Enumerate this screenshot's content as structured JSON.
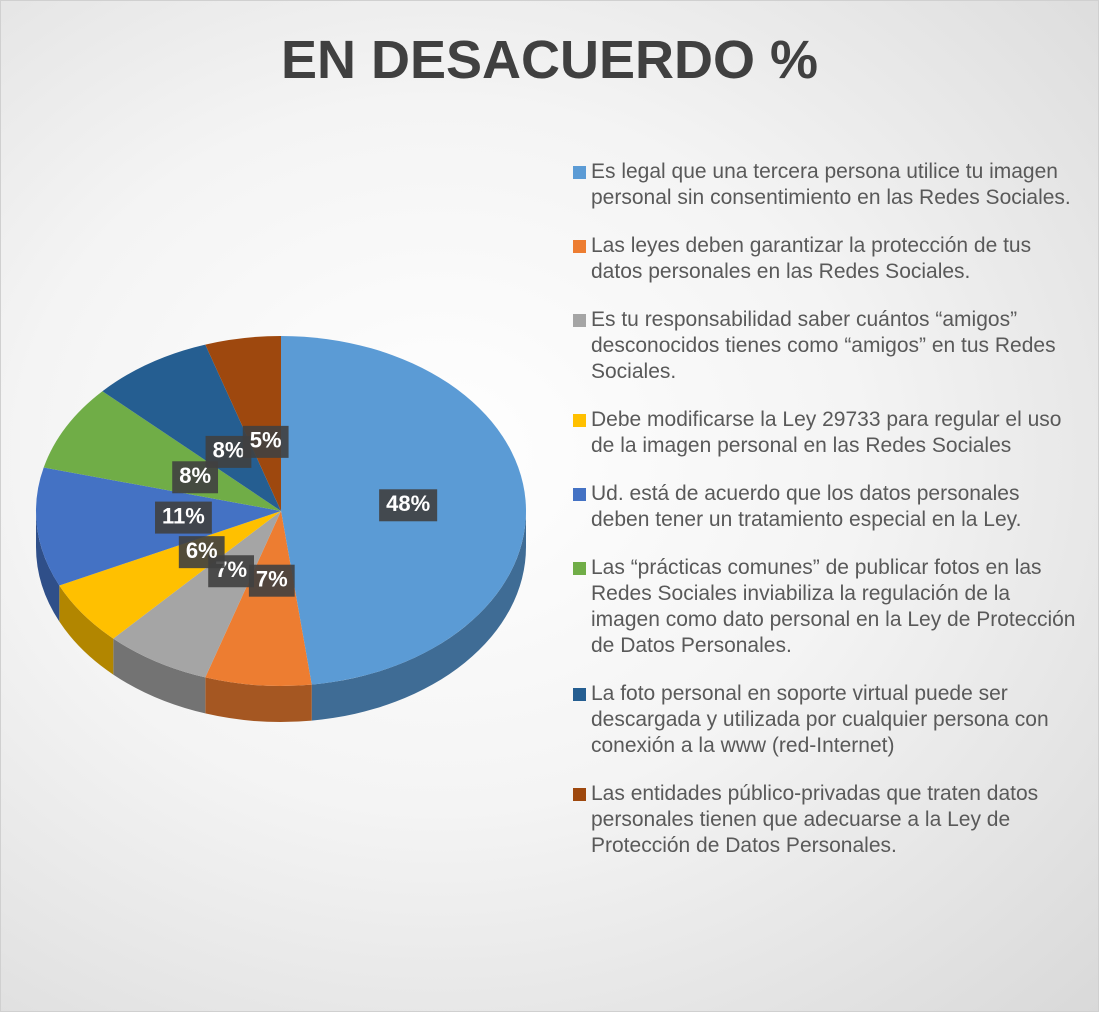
{
  "chart_data": {
    "type": "pie3d",
    "title": "EN DESACUERDO %",
    "categories": [
      "Es legal que una tercera persona utilice tu imagen personal sin consentimiento en las Redes Sociales.",
      "Las leyes deben garantizar la protección de tus datos personales en las Redes Sociales.",
      "Es tu responsabilidad saber cuántos “amigos” desconocidos tienes como “amigos” en tus Redes Sociales.",
      "Debe modificarse la Ley 29733 para regular el uso de la imagen personal en las Redes Sociales",
      "Ud. está de acuerdo que los datos personales deben tener un tratamiento especial en la Ley.",
      "Las “prácticas comunes” de publicar fotos en las Redes Sociales inviabiliza la regulación de la imagen como dato personal en la Ley de Protección de Datos Personales.",
      "La foto personal en soporte virtual puede ser descargada y utilizada por cualquier persona con conexión a la www (red-Internet)",
      "Las entidades público-privadas que traten datos personales tienen que adecuarse a la Ley de Protección de Datos Personales."
    ],
    "values": [
      48,
      7,
      7,
      6,
      11,
      8,
      8,
      5
    ],
    "value_labels": [
      "48%",
      "7%",
      "7%",
      "6%",
      "11%",
      "8%",
      "8%",
      "5%"
    ],
    "colors": [
      "#5b9bd5",
      "#ed7d31",
      "#a5a5a5",
      "#ffc000",
      "#4472c4",
      "#70ad47",
      "#255e91",
      "#9e480e"
    ],
    "legend": "right"
  }
}
